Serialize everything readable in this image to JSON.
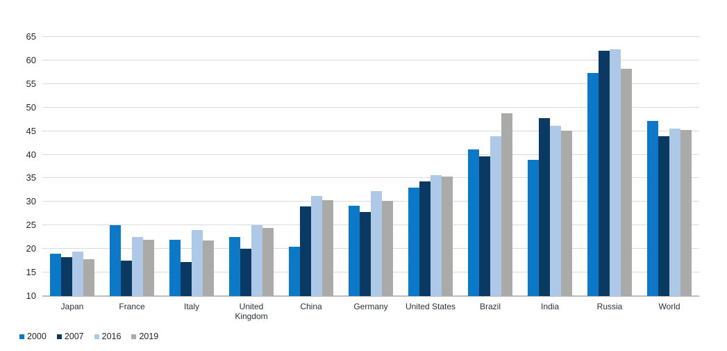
{
  "chart_data": {
    "type": "bar",
    "title": "",
    "xlabel": "",
    "ylabel": "",
    "ylim": [
      10,
      65
    ],
    "ytick_step": 5,
    "grid": true,
    "legend_position": "bottom-left",
    "categories": [
      "Japan",
      "France",
      "Italy",
      "United Kingdom",
      "China",
      "Germany",
      "United States",
      "Brazil",
      "India",
      "Russia",
      "World"
    ],
    "series": [
      {
        "name": "2000",
        "color": "#0b79c7",
        "values": [
          19.0,
          25.0,
          22.0,
          22.5,
          20.4,
          29.2,
          33.0,
          41.1,
          38.9,
          57.4,
          47.1
        ]
      },
      {
        "name": "2007",
        "color": "#0a3a62",
        "values": [
          18.2,
          17.5,
          17.3,
          20.1,
          29.0,
          27.8,
          34.3,
          39.6,
          47.7,
          62.1,
          43.9
        ]
      },
      {
        "name": "2016",
        "color": "#aec9e8",
        "values": [
          19.5,
          22.5,
          24.0,
          25.0,
          31.2,
          32.3,
          35.7,
          43.9,
          46.2,
          62.4,
          45.6
        ]
      },
      {
        "name": "2019",
        "color": "#aaaaa8",
        "values": [
          17.8,
          22.0,
          21.8,
          24.4,
          30.4,
          30.2,
          35.4,
          48.8,
          45.1,
          58.2,
          45.3
        ]
      }
    ],
    "style": {
      "gridline_color": "#dadada",
      "baseline_color": "#bdbdbd",
      "tick_label_color": "#24282e",
      "background": "#ffffff"
    }
  }
}
